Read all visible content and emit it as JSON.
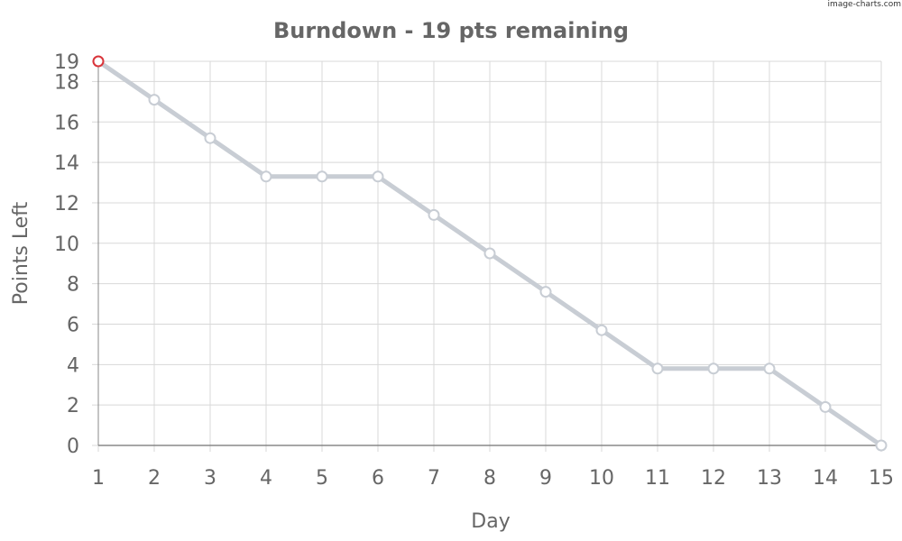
{
  "watermark": "image-charts.com",
  "chart_data": {
    "type": "line",
    "title": "Burndown - 19 pts remaining",
    "xlabel": "Day",
    "ylabel": "Points Left",
    "x": [
      1,
      2,
      3,
      4,
      5,
      6,
      7,
      8,
      9,
      10,
      11,
      12,
      13,
      14,
      15
    ],
    "xlim": [
      1,
      15
    ],
    "ylim": [
      0,
      19
    ],
    "y_ticks": [
      0,
      2,
      4,
      6,
      8,
      10,
      12,
      14,
      16,
      18,
      19
    ],
    "grid": true,
    "legend": "none",
    "series": [
      {
        "values": [
          19,
          17.1,
          15.2,
          13.3,
          13.3,
          13.3,
          11.4,
          9.5,
          7.6,
          5.7,
          3.8,
          3.8,
          3.8,
          1.9,
          0
        ],
        "color": "#c8cdd4",
        "marker_color": "#c8cdd4",
        "highlight_marker_color": "#d9343a"
      }
    ],
    "colors": {
      "title": "#666666",
      "axis_text": "#666666",
      "grid": "#d8d8d8",
      "axis_line": "#888888"
    }
  }
}
